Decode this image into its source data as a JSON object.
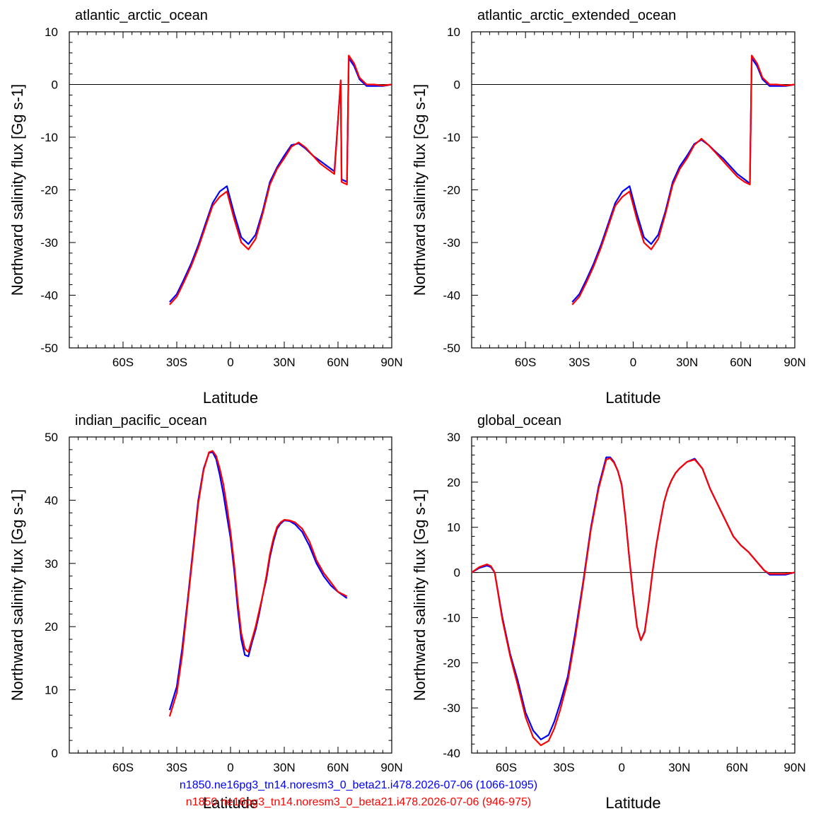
{
  "chart_data": [
    {
      "type": "line",
      "title": "atlantic_arctic_ocean",
      "xlabel": "Latitude",
      "ylabel": "Northward salinity flux [Gg s-1]",
      "xlim": [
        -90,
        90
      ],
      "ylim": [
        -50,
        10
      ],
      "xticks": [
        -60,
        -30,
        0,
        30,
        60,
        90
      ],
      "xtick_labels": [
        "60S",
        "30S",
        "0",
        "30N",
        "60N",
        "90N"
      ],
      "yticks": [
        -50,
        -40,
        -30,
        -20,
        -10,
        0,
        10
      ],
      "ytick_labels": [
        "-50",
        "-40",
        "-30",
        "-20",
        "-10",
        "0",
        "10"
      ],
      "zero_line": true,
      "series": [
        {
          "color": "#0000ff",
          "x": [
            -34,
            -30,
            -26,
            -22,
            -18,
            -14,
            -10,
            -6,
            -2,
            2,
            6,
            10,
            14,
            18,
            22,
            26,
            30,
            34,
            38,
            42,
            46,
            50,
            54,
            58,
            61.5,
            62,
            65,
            66,
            69,
            72,
            76,
            80,
            85,
            90
          ],
          "y": [
            -41.3,
            -39.8,
            -37,
            -34,
            -30.5,
            -26.5,
            -22.5,
            -20.3,
            -19.3,
            -24.5,
            -29,
            -30.3,
            -28.5,
            -24,
            -18.5,
            -15.7,
            -13.5,
            -11.5,
            -11.2,
            -12.2,
            -13.5,
            -14.5,
            -15.5,
            -16.5,
            0.5,
            -18,
            -18.5,
            5,
            3.5,
            1,
            -0.3,
            -0.3,
            -0.3,
            0
          ]
        },
        {
          "color": "#ff0000",
          "x": [
            -34,
            -30,
            -26,
            -22,
            -18,
            -14,
            -10,
            -6,
            -2,
            2,
            6,
            10,
            14,
            18,
            22,
            26,
            30,
            34,
            38,
            42,
            46,
            50,
            54,
            58,
            61.5,
            62,
            65,
            66,
            69,
            72,
            76,
            80,
            85,
            90
          ],
          "y": [
            -41.8,
            -40.3,
            -37.5,
            -34.5,
            -31,
            -27,
            -23,
            -21.3,
            -20.3,
            -25.5,
            -30,
            -31.3,
            -29.3,
            -24.5,
            -19,
            -16,
            -14,
            -11.8,
            -11,
            -12,
            -13.5,
            -15,
            -16,
            -17,
            0.8,
            -18.5,
            -19,
            5.5,
            4,
            1.3,
            0,
            0,
            -0.2,
            0
          ]
        }
      ]
    },
    {
      "type": "line",
      "title": "atlantic_arctic_extended_ocean",
      "xlabel": "Latitude",
      "ylabel": "Northward salinity flux [Gg s-1]",
      "xlim": [
        -90,
        90
      ],
      "ylim": [
        -50,
        10
      ],
      "xticks": [
        -60,
        -30,
        0,
        30,
        60,
        90
      ],
      "xtick_labels": [
        "60S",
        "30S",
        "0",
        "30N",
        "60N",
        "90N"
      ],
      "yticks": [
        -50,
        -40,
        -30,
        -20,
        -10,
        0,
        10
      ],
      "ytick_labels": [
        "-50",
        "-40",
        "-30",
        "-20",
        "-10",
        "0",
        "10"
      ],
      "zero_line": true,
      "series": [
        {
          "color": "#0000ff",
          "x": [
            -34,
            -30,
            -26,
            -22,
            -18,
            -14,
            -10,
            -6,
            -2,
            2,
            6,
            10,
            14,
            18,
            22,
            26,
            30,
            34,
            38,
            42,
            46,
            50,
            54,
            58,
            62,
            65,
            66,
            69,
            72,
            76,
            80,
            85,
            90
          ],
          "y": [
            -41.3,
            -39.8,
            -37,
            -34,
            -30.5,
            -26.5,
            -22.5,
            -20.3,
            -19.3,
            -24.5,
            -29,
            -30.3,
            -28.5,
            -24,
            -18.5,
            -15.5,
            -13.5,
            -11.3,
            -10.5,
            -11.5,
            -12.8,
            -14,
            -15.5,
            -17,
            -18,
            -18.8,
            5,
            3.5,
            1,
            -0.3,
            -0.3,
            -0.3,
            0
          ]
        },
        {
          "color": "#ff0000",
          "x": [
            -34,
            -30,
            -26,
            -22,
            -18,
            -14,
            -10,
            -6,
            -2,
            2,
            6,
            10,
            14,
            18,
            22,
            26,
            30,
            34,
            38,
            42,
            46,
            50,
            54,
            58,
            62,
            65,
            66,
            69,
            72,
            76,
            80,
            85,
            90
          ],
          "y": [
            -41.8,
            -40.3,
            -37.5,
            -34.5,
            -31,
            -27,
            -23,
            -21.3,
            -20.3,
            -25.5,
            -30,
            -31.3,
            -29.3,
            -24.5,
            -19,
            -16,
            -14,
            -11.5,
            -10.3,
            -11.5,
            -13,
            -14.5,
            -16,
            -17.5,
            -18.5,
            -19,
            5.5,
            4,
            1.3,
            0,
            0,
            -0.2,
            0
          ]
        }
      ]
    },
    {
      "type": "line",
      "title": "indian_pacific_ocean",
      "xlabel": "Latitude",
      "ylabel": "Northward salinity flux [Gg s-1]",
      "xlim": [
        -90,
        90
      ],
      "ylim": [
        0,
        50
      ],
      "xticks": [
        -60,
        -30,
        0,
        30,
        60,
        90
      ],
      "xtick_labels": [
        "60S",
        "30S",
        "0",
        "30N",
        "60N",
        "90N"
      ],
      "yticks": [
        0,
        10,
        20,
        30,
        40,
        50
      ],
      "ytick_labels": [
        "0",
        "10",
        "20",
        "30",
        "40",
        "50"
      ],
      "zero_line": false,
      "series": [
        {
          "color": "#0000ff",
          "x": [
            -34,
            -30,
            -27,
            -24,
            -21,
            -18,
            -15,
            -12,
            -10,
            -8,
            -6,
            -4,
            -2,
            0,
            2,
            4,
            6,
            8,
            10,
            12,
            14,
            16,
            18,
            20,
            22,
            24,
            26,
            28,
            30,
            33,
            36,
            40,
            44,
            48,
            52,
            56,
            60,
            65
          ],
          "y": [
            6.8,
            10.5,
            16.5,
            24,
            32,
            40,
            45,
            47.5,
            47.6,
            46.5,
            44,
            41,
            37.5,
            34,
            29,
            23,
            18,
            15.5,
            15.3,
            17.5,
            19.5,
            22,
            25,
            27.5,
            31,
            33.5,
            35.5,
            36.3,
            36.8,
            36.7,
            36.2,
            35,
            32.8,
            30,
            28,
            26.5,
            25.5,
            24.5
          ]
        },
        {
          "color": "#ff0000",
          "x": [
            -34,
            -30,
            -27,
            -24,
            -21,
            -18,
            -15,
            -12,
            -10,
            -8,
            -6,
            -4,
            -2,
            0,
            2,
            4,
            6,
            8,
            10,
            12,
            14,
            16,
            18,
            20,
            22,
            24,
            26,
            28,
            30,
            33,
            36,
            40,
            44,
            48,
            52,
            56,
            60,
            65
          ],
          "y": [
            5.8,
            9.5,
            15.5,
            23.5,
            31.5,
            39.5,
            44.8,
            47.6,
            47.8,
            47,
            45,
            42.5,
            39,
            35,
            30,
            24,
            19,
            16.5,
            16,
            18,
            20,
            22.5,
            25,
            28,
            31.5,
            34,
            35.8,
            36.5,
            36.9,
            36.8,
            36.5,
            35.5,
            33.5,
            30.5,
            28.5,
            27,
            25.5,
            24.8
          ]
        }
      ]
    },
    {
      "type": "line",
      "title": "global_ocean",
      "xlabel": "Latitude",
      "ylabel": "Northward salinity flux [Gg s-1]",
      "xlim": [
        -78,
        90
      ],
      "ylim": [
        -40,
        30
      ],
      "xticks": [
        -60,
        -30,
        0,
        30,
        60,
        90
      ],
      "xtick_labels": [
        "60S",
        "30S",
        "0",
        "30N",
        "60N",
        "90N"
      ],
      "yticks": [
        -40,
        -30,
        -20,
        -10,
        0,
        10,
        20,
        30
      ],
      "ytick_labels": [
        "-40",
        "-30",
        "-20",
        "-10",
        "0",
        "10",
        "20",
        "30"
      ],
      "zero_line": true,
      "series": [
        {
          "color": "#0000ff",
          "x": [
            -78,
            -74,
            -70,
            -68,
            -66,
            -62,
            -58,
            -54,
            -50,
            -46,
            -42,
            -38,
            -35,
            -32,
            -28,
            -24,
            -20,
            -16,
            -12,
            -8,
            -6,
            -4,
            -2,
            0,
            2,
            4,
            6,
            8,
            10,
            12,
            14,
            16,
            18,
            20,
            22,
            24,
            26,
            28,
            30,
            34,
            38,
            42,
            46,
            50,
            54,
            58,
            62,
            66,
            70,
            74,
            77,
            80,
            85,
            90
          ],
          "y": [
            0,
            1,
            1.5,
            1.2,
            0,
            -10,
            -18,
            -24,
            -31,
            -35,
            -37,
            -36,
            -33,
            -29,
            -23,
            -13,
            -2,
            10,
            19,
            25.5,
            25.5,
            24.5,
            22.5,
            19.5,
            12,
            3,
            -5,
            -12,
            -15,
            -13,
            -7,
            0,
            6,
            11,
            15.5,
            18.5,
            20.5,
            22,
            23,
            24.5,
            25.2,
            23,
            18.5,
            15,
            11.5,
            8,
            6,
            4.5,
            2.5,
            0.5,
            -0.5,
            -0.5,
            -0.5,
            0
          ]
        },
        {
          "color": "#ff0000",
          "x": [
            -78,
            -74,
            -70,
            -68,
            -66,
            -62,
            -58,
            -54,
            -50,
            -46,
            -42,
            -38,
            -35,
            -32,
            -28,
            -24,
            -20,
            -16,
            -12,
            -8,
            -6,
            -4,
            -2,
            0,
            2,
            4,
            6,
            8,
            10,
            12,
            14,
            16,
            18,
            20,
            22,
            24,
            26,
            28,
            30,
            34,
            38,
            42,
            46,
            50,
            54,
            58,
            62,
            66,
            70,
            74,
            77,
            80,
            85,
            90
          ],
          "y": [
            0,
            1.2,
            1.8,
            1.4,
            0,
            -10.5,
            -18.5,
            -25,
            -32,
            -36.5,
            -38.3,
            -37.3,
            -34.5,
            -30.5,
            -24,
            -14,
            -2.5,
            9.5,
            18.5,
            25,
            25.3,
            24.3,
            22.5,
            19.3,
            12,
            3,
            -5,
            -12,
            -15,
            -13.2,
            -7,
            0,
            6,
            11,
            15.5,
            18.5,
            20.5,
            22,
            23,
            24.5,
            25,
            23,
            18.5,
            15,
            11.5,
            8,
            6,
            4.5,
            2.5,
            0.5,
            -0.3,
            -0.3,
            -0.3,
            0
          ]
        }
      ]
    }
  ],
  "footnotes": {
    "blue": "n1850.ne16pg3_tn14.noresm3_0_beta21.i478.2026-07-06 (1066-1095)",
    "red": "n1850.ne16pg3_tn14.noresm3_0_beta21.i478.2026-07-06 (946-975)"
  },
  "colors": {
    "series_a": "#0000ff",
    "series_b": "#ff0000",
    "axis": "#000000"
  }
}
